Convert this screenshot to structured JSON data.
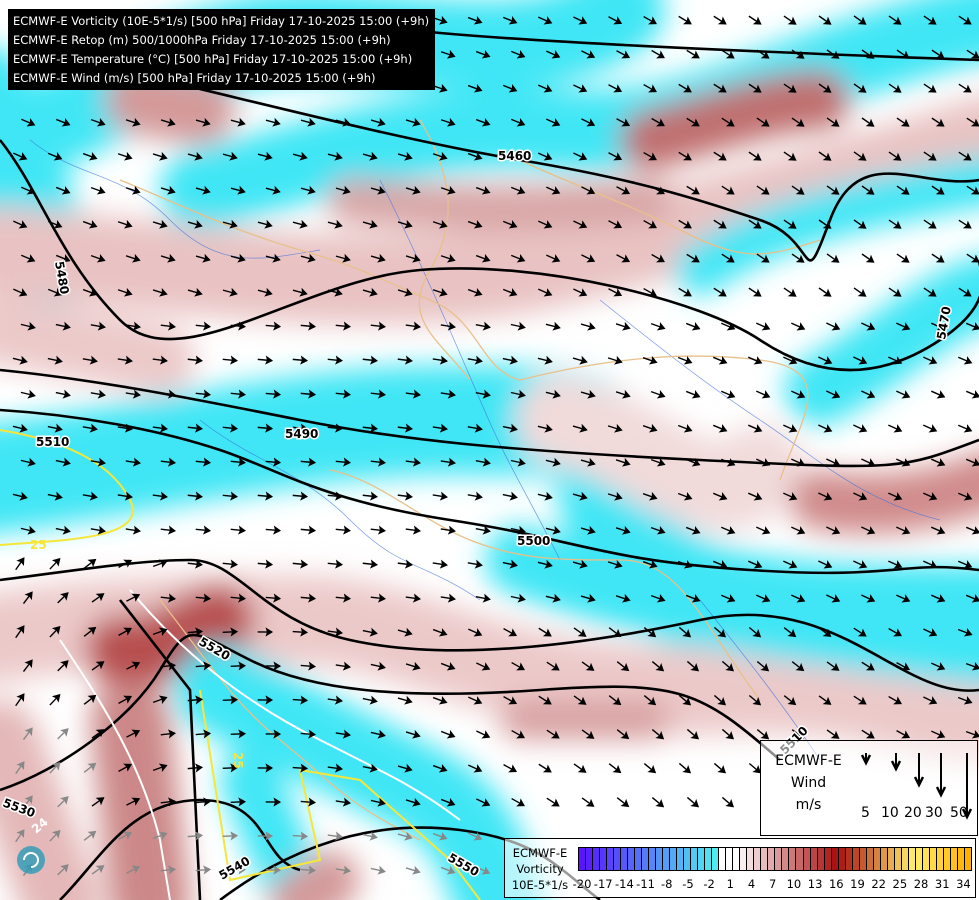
{
  "header": {
    "lines": [
      "ECMWF-E Vorticity (10E-5*1/s) [500 hPa] Friday 17-10-2025 15:00 (+9h)",
      "ECMWF-E Retop (m) 500/1000hPa Friday 17-10-2025 15:00 (+9h)",
      "ECMWF-E Temperature (°C) [500 hPa] Friday 17-10-2025 15:00 (+9h)",
      "ECMWF-E Wind (m/s) [500 hPa] Friday 17-10-2025 15:00 (+9h)"
    ]
  },
  "contours": {
    "geopotential_labels": [
      "5460",
      "5480",
      "5470",
      "5490",
      "5510",
      "5500",
      "5520",
      "5530",
      "5540",
      "5550",
      "5510"
    ],
    "temperature_labels": [
      "25",
      "25",
      "24"
    ]
  },
  "wind_legend": {
    "title1": "ECMWF-E",
    "title2": "Wind",
    "unit": "m/s",
    "values": [
      "5",
      "10",
      "20",
      "30",
      "50"
    ]
  },
  "vorticity_legend": {
    "title1": "ECMWF-E",
    "title2": "Vorticity",
    "unit": "10E-5*1/s",
    "ticks": [
      "-20",
      "-17",
      "-14",
      "-11",
      "-8",
      "-5",
      "-2",
      "1",
      "4",
      "7",
      "10",
      "13",
      "16",
      "19",
      "22",
      "25",
      "28",
      "31",
      "34"
    ],
    "colors": {
      "min": "#5a14ff",
      "neg_light": "#4ff0f0",
      "zero": "#ffffff",
      "pos_mid": "#a80e0e",
      "pos_high": "#fff070",
      "max": "#ffb000"
    }
  },
  "colors": {
    "contour": "#000000",
    "border": "#e8c08a",
    "river": "#3a6fd8",
    "temp_contour": "#f5e63a",
    "cyan": "#3fe6f5",
    "pink": "#c98080"
  }
}
